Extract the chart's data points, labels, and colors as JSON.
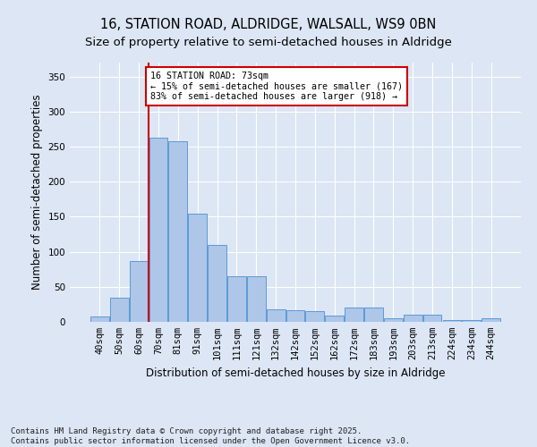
{
  "title_line1": "16, STATION ROAD, ALDRIDGE, WALSALL, WS9 0BN",
  "title_line2": "Size of property relative to semi-detached houses in Aldridge",
  "xlabel": "Distribution of semi-detached houses by size in Aldridge",
  "ylabel": "Number of semi-detached properties",
  "categories": [
    "40sqm",
    "50sqm",
    "60sqm",
    "70sqm",
    "81sqm",
    "91sqm",
    "101sqm",
    "111sqm",
    "121sqm",
    "132sqm",
    "142sqm",
    "152sqm",
    "162sqm",
    "172sqm",
    "183sqm",
    "193sqm",
    "203sqm",
    "213sqm",
    "224sqm",
    "234sqm",
    "244sqm"
  ],
  "values": [
    8,
    35,
    87,
    263,
    258,
    155,
    110,
    65,
    65,
    18,
    17,
    15,
    9,
    20,
    20,
    5,
    10,
    10,
    3,
    2,
    5
  ],
  "bar_color": "#aec6e8",
  "bar_edge_color": "#5b9bd5",
  "vline_color": "#cc0000",
  "annotation_text": "16 STATION ROAD: 73sqm\n← 15% of semi-detached houses are smaller (167)\n83% of semi-detached houses are larger (918) →",
  "annotation_box_color": "#cc0000",
  "ylim": [
    0,
    370
  ],
  "yticks": [
    0,
    50,
    100,
    150,
    200,
    250,
    300,
    350
  ],
  "background_color": "#dce6f5",
  "plot_background": "#dce6f5",
  "footer": "Contains HM Land Registry data © Crown copyright and database right 2025.\nContains public sector information licensed under the Open Government Licence v3.0.",
  "grid_color": "#ffffff",
  "title_fontsize": 10.5,
  "subtitle_fontsize": 9.5,
  "tick_fontsize": 7.5,
  "label_fontsize": 8.5
}
